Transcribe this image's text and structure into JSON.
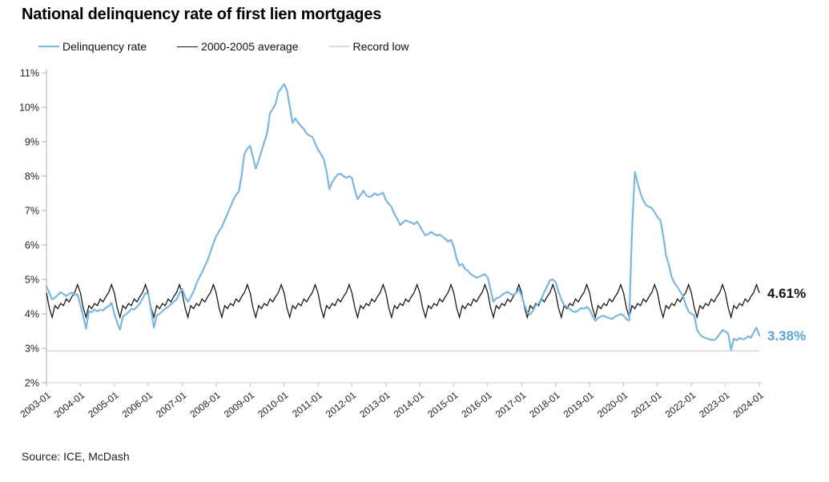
{
  "header": {
    "title": "National delinquency rate of first lien mortgages"
  },
  "legend": [
    {
      "label": "Delinquency rate",
      "color": "#7cb7dd"
    },
    {
      "label": "2000-2005 average",
      "color": "#1a1a1a"
    },
    {
      "label": "Record low",
      "color": "#dcdcdc"
    }
  ],
  "annotations": {
    "average_end_label": "4.61%",
    "delinquency_end_label": "3.38%"
  },
  "source": "Source: ICE, McDash",
  "chart_data": {
    "type": "line",
    "title": "National delinquency rate of first lien mortgages",
    "frequency": "monthly",
    "x_start": "2003-01",
    "x_end": "2024-01",
    "ylim": [
      2,
      11
    ],
    "grid": "off",
    "legend_position": "top",
    "y_tick_labels": [
      "2%",
      "3%",
      "4%",
      "5%",
      "6%",
      "7%",
      "8%",
      "9%",
      "10%",
      "11%"
    ],
    "x_tick_labels": [
      "2003-01",
      "2004-01",
      "2005-01",
      "2006-01",
      "2007-01",
      "2008-01",
      "2009-01",
      "2010-01",
      "2011-01",
      "2012-01",
      "2013-01",
      "2014-01",
      "2015-01",
      "2016-01",
      "2017-01",
      "2018-01",
      "2019-01",
      "2020-01",
      "2021-01",
      "2022-01",
      "2023-01",
      "2024-01"
    ],
    "record_low": 2.92,
    "series": [
      {
        "name": "Delinquency rate",
        "color": "#7cb7dd",
        "end_value_label": "3.38%",
        "values": [
          4.8,
          4.62,
          4.42,
          4.47,
          4.55,
          4.63,
          4.58,
          4.52,
          4.58,
          4.62,
          4.55,
          4.57,
          4.25,
          3.92,
          3.57,
          4.08,
          4.05,
          4.12,
          4.08,
          4.12,
          4.1,
          4.18,
          4.22,
          4.32,
          4.0,
          3.75,
          3.54,
          3.92,
          3.98,
          4.05,
          4.15,
          4.12,
          4.2,
          4.3,
          4.45,
          4.6,
          4.58,
          4.1,
          3.6,
          3.95,
          4.0,
          4.08,
          4.15,
          4.2,
          4.28,
          4.35,
          4.42,
          4.6,
          4.72,
          4.5,
          4.35,
          4.48,
          4.65,
          4.88,
          5.05,
          5.2,
          5.4,
          5.56,
          5.8,
          6.05,
          6.25,
          6.4,
          6.52,
          6.72,
          6.9,
          7.11,
          7.3,
          7.45,
          7.55,
          8.03,
          8.65,
          8.8,
          8.88,
          8.55,
          8.22,
          8.45,
          8.72,
          8.99,
          9.25,
          9.82,
          9.95,
          10.1,
          10.45,
          10.55,
          10.68,
          10.5,
          10.03,
          9.55,
          9.68,
          9.55,
          9.45,
          9.37,
          9.23,
          9.18,
          9.14,
          8.95,
          8.77,
          8.65,
          8.5,
          8.15,
          7.62,
          7.82,
          7.95,
          8.05,
          8.07,
          8.0,
          7.95,
          8.0,
          7.95,
          7.6,
          7.33,
          7.45,
          7.58,
          7.45,
          7.4,
          7.42,
          7.5,
          7.45,
          7.48,
          7.52,
          7.3,
          7.2,
          7.1,
          6.9,
          6.76,
          6.58,
          6.65,
          6.72,
          6.68,
          6.65,
          6.6,
          6.68,
          6.55,
          6.4,
          6.28,
          6.32,
          6.38,
          6.32,
          6.28,
          6.3,
          6.25,
          6.18,
          6.1,
          6.15,
          5.95,
          5.6,
          5.4,
          5.45,
          5.3,
          5.25,
          5.15,
          5.1,
          5.05,
          5.08,
          5.12,
          5.15,
          5.05,
          4.7,
          4.35,
          4.45,
          4.48,
          4.55,
          4.6,
          4.64,
          4.58,
          4.55,
          4.6,
          4.72,
          4.52,
          4.25,
          4.05,
          3.98,
          4.1,
          4.25,
          4.3,
          4.45,
          4.64,
          4.8,
          4.98,
          5.0,
          4.92,
          4.65,
          4.42,
          4.26,
          4.2,
          4.14,
          4.08,
          4.05,
          4.1,
          4.17,
          4.15,
          4.2,
          4.12,
          3.95,
          3.8,
          3.88,
          3.92,
          3.95,
          3.9,
          3.88,
          3.85,
          3.92,
          3.95,
          4.0,
          3.95,
          3.85,
          3.8,
          6.45,
          8.12,
          7.8,
          7.5,
          7.3,
          7.15,
          7.11,
          7.07,
          6.95,
          6.81,
          6.72,
          6.3,
          5.7,
          5.43,
          5.07,
          4.9,
          4.79,
          4.65,
          4.53,
          4.26,
          4.06,
          4.0,
          3.95,
          3.53,
          3.4,
          3.33,
          3.3,
          3.27,
          3.25,
          3.24,
          3.3,
          3.42,
          3.53,
          3.49,
          3.42,
          2.95,
          3.28,
          3.23,
          3.3,
          3.26,
          3.28,
          3.35,
          3.3,
          3.46,
          3.6,
          3.38
        ]
      },
      {
        "name": "2000-2005 average",
        "color": "#1a1a1a",
        "end_value_label": "4.61%",
        "note": "repeating seasonal 12-month pattern (Jan-Dec), repeated 2003-2023, ending Jan 2024 at 4.61",
        "pattern_jan_dec": [
          4.61,
          4.18,
          3.9,
          4.24,
          4.15,
          4.3,
          4.24,
          4.43,
          4.35,
          4.5,
          4.62,
          4.85
        ],
        "final_value": 4.61
      }
    ]
  }
}
